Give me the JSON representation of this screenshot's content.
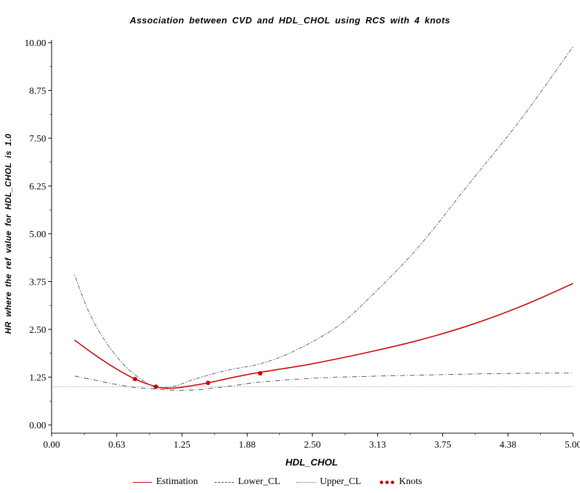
{
  "chart_data": {
    "type": "line",
    "title": "Association between CVD and HDL_CHOL using RCS with 4 knots",
    "xlabel": "HDL_CHOL",
    "ylabel": "HR where the ref value for HDL_CHOL is 1.0",
    "xlim": [
      0.0,
      5.0
    ],
    "ylim": [
      0.0,
      10.0
    ],
    "x_ticks": [
      "0.00",
      "0.63",
      "1.25",
      "1.88",
      "2.50",
      "3.13",
      "3.75",
      "4.38",
      "5.00"
    ],
    "y_ticks": [
      "0.00",
      "1.25",
      "2.50",
      "3.75",
      "5.00",
      "6.25",
      "7.50",
      "8.75",
      "10.00"
    ],
    "reference_line": 1.0,
    "series": [
      {
        "name": "Estimation",
        "color": "#cc0000",
        "style": "solid",
        "x": [
          0.22,
          0.4,
          0.6,
          0.8,
          1.0,
          1.1,
          1.2,
          1.35,
          1.5,
          1.7,
          1.9,
          2.1,
          2.5,
          3.0,
          3.5,
          4.0,
          4.5,
          5.0
        ],
        "y": [
          2.22,
          1.86,
          1.5,
          1.2,
          1.0,
          0.96,
          0.97,
          1.03,
          1.1,
          1.22,
          1.33,
          1.42,
          1.6,
          1.88,
          2.2,
          2.6,
          3.1,
          3.7
        ]
      },
      {
        "name": "Lower_CL",
        "color": "#444444",
        "style": "dashed",
        "x": [
          0.22,
          0.4,
          0.6,
          0.8,
          1.0,
          1.1,
          1.2,
          1.4,
          1.6,
          1.8,
          2.0,
          2.5,
          3.0,
          3.5,
          4.0,
          4.5,
          5.0
        ],
        "y": [
          1.28,
          1.18,
          1.07,
          0.98,
          0.94,
          0.92,
          0.91,
          0.92,
          0.98,
          1.05,
          1.12,
          1.22,
          1.27,
          1.3,
          1.33,
          1.35,
          1.36
        ]
      },
      {
        "name": "Upper_CL",
        "color": "#555555",
        "style": "dotted",
        "x": [
          0.22,
          0.35,
          0.5,
          0.7,
          0.9,
          1.0,
          1.1,
          1.2,
          1.35,
          1.5,
          1.7,
          2.0,
          2.3,
          2.7,
          3.0,
          3.5,
          4.0,
          4.5,
          5.0
        ],
        "y": [
          3.93,
          3.0,
          2.25,
          1.55,
          1.12,
          1.0,
          0.98,
          1.03,
          1.18,
          1.3,
          1.44,
          1.6,
          1.9,
          2.5,
          3.2,
          4.6,
          6.3,
          8.0,
          9.9
        ]
      },
      {
        "name": "Knots",
        "color": "#cc0000",
        "style": "markers",
        "x": [
          0.8,
          1.0,
          1.5,
          2.0
        ],
        "y": [
          1.2,
          1.0,
          1.1,
          1.35
        ]
      }
    ]
  }
}
